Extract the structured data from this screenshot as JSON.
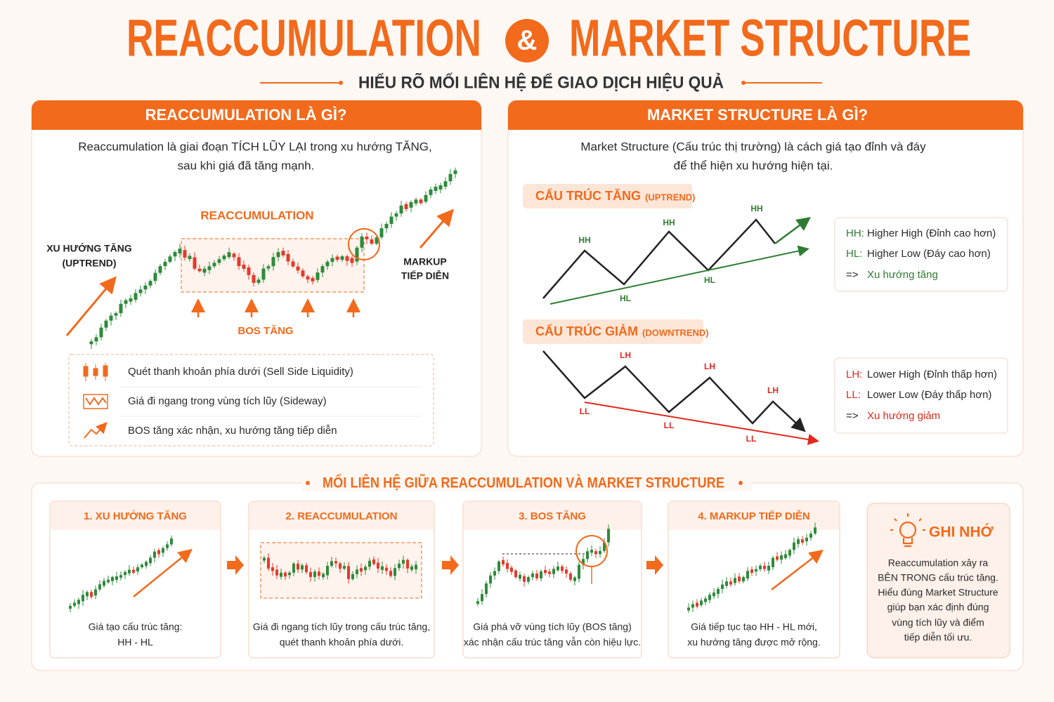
{
  "header": {
    "title_left": "REACCUMULATION",
    "ampersand": "&",
    "title_right": "MARKET STRUCTURE",
    "subtitle": "HIỂU RÕ MỐI LIÊN HỆ ĐỂ GIAO DỊCH HIỆU QUẢ"
  },
  "left_panel": {
    "title": "REACCUMULATION LÀ GÌ?",
    "description": [
      "Reaccumulation là giai đoạn TÍCH LŨY LẠI trong xu hướng TĂNG,",
      "sau khi giá đã tăng mạnh."
    ],
    "chart_labels": {
      "uptrend": [
        "XU HƯỚNG TĂNG",
        "(UPTREND)"
      ],
      "range": "REACCUMULATION",
      "bos": "BOS TĂNG",
      "markup": [
        "MARKUP",
        "TIẾP DIỄN"
      ]
    },
    "legend": [
      "Quét thanh khoản phía dưới (Sell Side Liquidity)",
      "Giá đi ngang trong vùng tích lũy (Sideway)",
      "BOS tăng xác nhận, xu hướng tăng tiếp diễn"
    ]
  },
  "right_panel": {
    "title": "MARKET STRUCTURE LÀ GÌ?",
    "description": [
      "Market Structure (Cấu trúc thị trường) là cách giá tạo đỉnh và đáy",
      "để thể hiện xu hướng hiện tại."
    ],
    "uptrend": {
      "tag": "CẤU TRÚC TĂNG",
      "tag_note": "(UPTREND)",
      "points": [
        "HH",
        "HL",
        "HH",
        "HL",
        "HH"
      ],
      "legend": [
        {
          "key": "HH:",
          "text": "Higher High (Đỉnh cao hơn)"
        },
        {
          "key": "HL:",
          "text": "Higher Low (Đáy cao hơn)"
        },
        {
          "key": "=>",
          "text": "Xu hướng tăng"
        }
      ]
    },
    "downtrend": {
      "tag": "CẤU TRÚC GIẢM",
      "tag_note": "(DOWNTREND)",
      "points": [
        "LL",
        "LH",
        "LL",
        "LH",
        "LL",
        "LH"
      ],
      "legend": [
        {
          "key": "LH:",
          "text": "Lower High (Đỉnh thấp hơn)"
        },
        {
          "key": "LL:",
          "text": "Lower Low (Đáy thấp hơn)"
        },
        {
          "key": "=>",
          "text": "Xu hướng giảm"
        }
      ]
    }
  },
  "relation": {
    "title": "MỐI LIÊN HỆ GIỮA REACCUMULATION VÀ MARKET STRUCTURE",
    "steps": [
      {
        "title": "1. XU HƯỚNG TĂNG",
        "caption": [
          "Giá tạo cấu trúc tăng:",
          "HH - HL"
        ]
      },
      {
        "title": "2. REACCUMULATION",
        "caption": [
          "Giá đi ngang tích lũy trong cấu trúc tăng,",
          "quét thanh khoản phía dưới."
        ]
      },
      {
        "title": "3. BOS TĂNG",
        "caption": [
          "Giá phá vỡ vùng tích lũy (BOS tăng)",
          "xác nhận cấu trúc tăng vẫn còn hiệu lực."
        ]
      },
      {
        "title": "4. MARKUP TIẾP DIỄN",
        "caption": [
          "Giá tiếp tục tạo HH - HL mới,",
          "xu hướng tăng được mở rộng."
        ]
      }
    ],
    "note": {
      "title": "GHI NHỚ",
      "lines": [
        "Reaccumulation xảy ra",
        "BÊN TRONG cấu trúc tăng.",
        "Hiểu đúng Market Structure",
        "giúp bạn xác định đúng",
        "vùng tích lũy và điểm",
        "tiếp diễn tối ưu."
      ]
    }
  }
}
